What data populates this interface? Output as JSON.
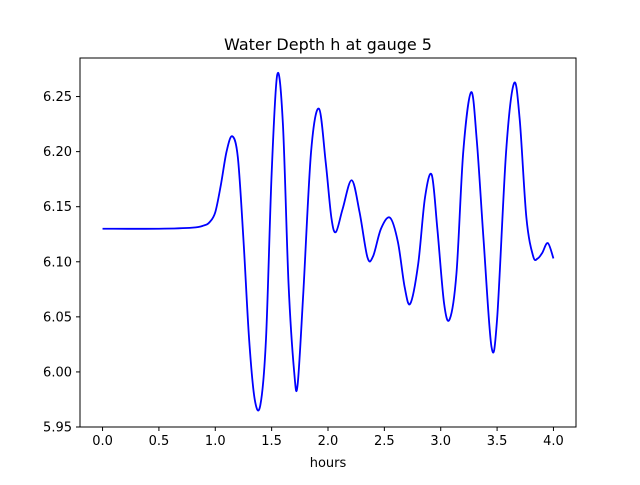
{
  "chart_data": {
    "type": "line",
    "title": "Water Depth h at gauge 5",
    "xlabel": "hours",
    "ylabel": "",
    "xlim": [
      -0.2,
      4.2
    ],
    "ylim": [
      5.95,
      6.285
    ],
    "xticks": [
      "0.0",
      "0.5",
      "1.0",
      "1.5",
      "2.0",
      "2.5",
      "3.0",
      "3.5",
      "4.0"
    ],
    "yticks": [
      "5.95",
      "6.00",
      "6.05",
      "6.10",
      "6.15",
      "6.20",
      "6.25"
    ],
    "grid": false,
    "legend": "none",
    "series": [
      {
        "color": "#0000ff",
        "x": [
          0.0,
          0.5,
          0.8,
          0.9,
          0.95,
          1.0,
          1.05,
          1.1,
          1.15,
          1.2,
          1.25,
          1.3,
          1.35,
          1.4,
          1.45,
          1.5,
          1.55,
          1.6,
          1.65,
          1.7,
          1.73,
          1.78,
          1.85,
          1.92,
          1.98,
          2.03,
          2.07,
          2.13,
          2.21,
          2.28,
          2.35,
          2.4,
          2.47,
          2.55,
          2.62,
          2.68,
          2.73,
          2.8,
          2.86,
          2.92,
          2.97,
          3.03,
          3.08,
          3.14,
          3.2,
          3.27,
          3.32,
          3.38,
          3.45,
          3.5,
          3.58,
          3.65,
          3.7,
          3.76,
          3.82,
          3.86,
          3.9,
          3.95,
          4.0
        ],
        "values": [
          6.13,
          6.13,
          6.131,
          6.133,
          6.136,
          6.145,
          6.17,
          6.2,
          6.214,
          6.195,
          6.12,
          6.03,
          5.975,
          5.97,
          6.03,
          6.18,
          6.27,
          6.225,
          6.08,
          6.0,
          5.988,
          6.07,
          6.2,
          6.239,
          6.19,
          6.14,
          6.127,
          6.148,
          6.174,
          6.145,
          6.104,
          6.105,
          6.13,
          6.14,
          6.118,
          6.077,
          6.062,
          6.098,
          6.158,
          6.179,
          6.13,
          6.062,
          6.048,
          6.09,
          6.2,
          6.254,
          6.21,
          6.12,
          6.023,
          6.048,
          6.2,
          6.262,
          6.23,
          6.14,
          6.105,
          6.103,
          6.108,
          6.117,
          6.103
        ]
      }
    ]
  }
}
